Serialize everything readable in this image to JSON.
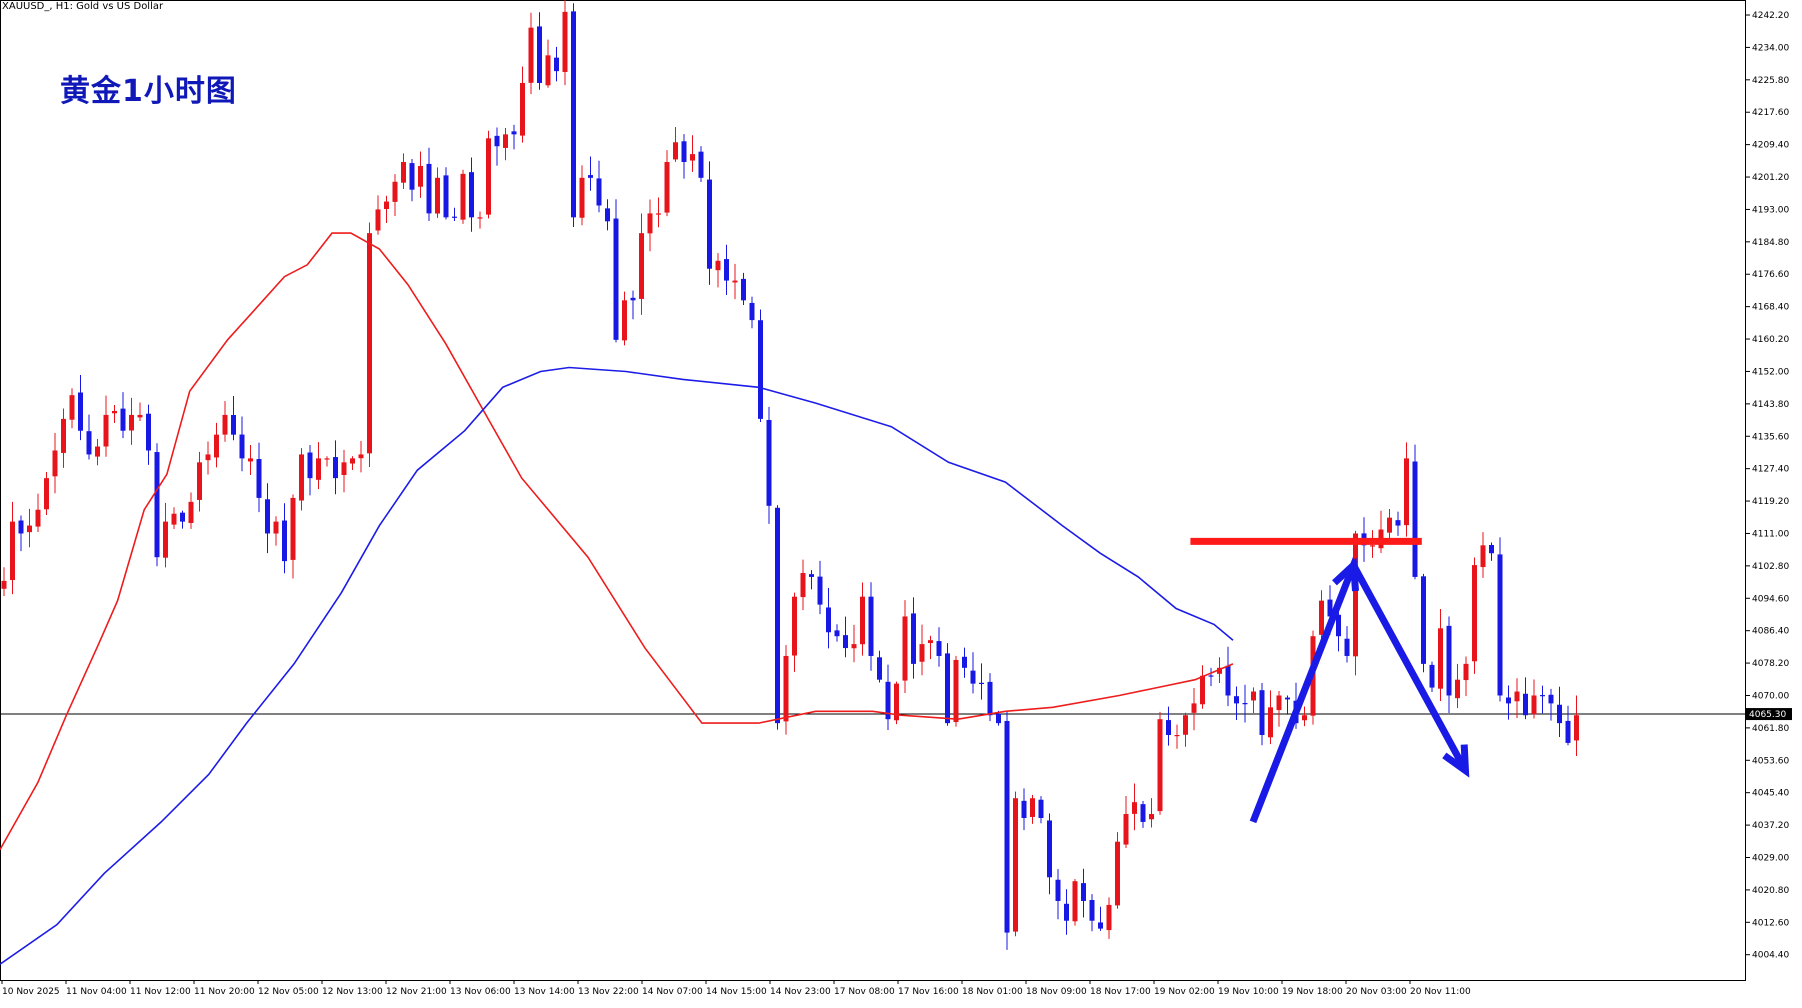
{
  "header": {
    "symbol_line": "XAUUSD_, H1:  Gold vs US Dollar"
  },
  "overlay_title": "黄金1小时图",
  "current_price_label": "4065.30",
  "colors": {
    "up": "#e8141c",
    "down": "#1717e6",
    "ma_fast": "#ee1c1c",
    "ma_slow": "#1c1ce8",
    "arrow": "#1a1ae6",
    "resistance": "#ff1a1a"
  },
  "chart_data": {
    "type": "candlestick",
    "title": "",
    "symbol": "XAUUSD_",
    "timeframe": "H1",
    "ylim": [
      3998,
      4246
    ],
    "y_ticks": [
      "4242.20",
      "4234.00",
      "4225.80",
      "4217.60",
      "4209.40",
      "4201.20",
      "4193.00",
      "4184.80",
      "4176.60",
      "4168.40",
      "4160.20",
      "4152.00",
      "4143.80",
      "4135.60",
      "4127.40",
      "4119.20",
      "4111.00",
      "4102.80",
      "4094.60",
      "4086.40",
      "4078.20",
      "4070.00",
      "4061.80",
      "4053.60",
      "4045.40",
      "4037.20",
      "4029.00",
      "4020.80",
      "4012.60",
      "4004.40"
    ],
    "x_ticks": [
      "10 Nov 2025",
      "11 Nov 04:00",
      "11 Nov 12:00",
      "11 Nov 20:00",
      "12 Nov 05:00",
      "12 Nov 13:00",
      "12 Nov 21:00",
      "13 Nov 06:00",
      "13 Nov 14:00",
      "13 Nov 22:00",
      "14 Nov 07:00",
      "14 Nov 15:00",
      "14 Nov 23:00",
      "17 Nov 08:00",
      "17 Nov 16:00",
      "18 Nov 01:00",
      "18 Nov 09:00",
      "18 Nov 17:00",
      "19 Nov 02:00",
      "19 Nov 10:00",
      "19 Nov 18:00",
      "20 Nov 03:00",
      "20 Nov 11:00"
    ],
    "current_price": 4065.3,
    "closes": [
      4099,
      4114,
      4111,
      4113,
      4117,
      4125,
      4132,
      4140,
      4146,
      4137,
      4131,
      4133,
      4141,
      4142,
      4137,
      4141,
      4141,
      4132,
      4105,
      4114,
      4116,
      4114,
      4119,
      4129,
      4131,
      4136,
      4141,
      4136,
      4130,
      4130,
      4120,
      4111,
      4114,
      4104,
      4120,
      4131,
      4125,
      4130,
      4130,
      4125,
      4129,
      4130,
      4131,
      4187,
      4193,
      4195,
      4200,
      4205,
      4198,
      4204,
      4192,
      4201,
      4191,
      4191,
      4202,
      4191,
      4191,
      4211,
      4209,
      4212,
      4212,
      4225,
      4239,
      4225,
      4232,
      4228,
      4243,
      4191,
      4201,
      4201,
      4194,
      4190,
      4160,
      4170,
      4170,
      4187,
      4192,
      4192,
      4205,
      4210,
      4205,
      4207,
      4201,
      4178,
      4180,
      4175,
      4175,
      4170,
      4165,
      4140,
      4118,
      4063,
      4080,
      4095,
      4101,
      4100,
      4093,
      4086,
      4085,
      4082,
      4083,
      4095,
      4080,
      4074,
      4064,
      4073,
      4090,
      4078,
      4083,
      4084,
      4080,
      4063,
      4079,
      4077,
      4073,
      4073,
      4065,
      4063,
      4010,
      4044,
      4039,
      4044,
      4039,
      4024,
      4018,
      4013,
      4023,
      4018,
      4013,
      4011,
      4017,
      4033,
      4040,
      4043,
      4038,
      4040,
      4064,
      4060,
      4060,
      4065,
      4068,
      4075,
      4075,
      4077,
      4070,
      4068,
      4068,
      4071,
      4060,
      4067,
      4070,
      4069,
      4063,
      4065,
      4085,
      4094,
      4090,
      4085,
      4080,
      4111,
      4108,
      4108,
      4112,
      4115,
      4113,
      4130,
      4100,
      4078,
      4072,
      4087,
      4070,
      4074,
      4078,
      4103,
      4108,
      4106,
      4070,
      4068,
      4071,
      4065,
      4070,
      4070,
      4068,
      4063,
      4058,
      4065
    ],
    "series": [
      {
        "name": "",
        "kind": "moving_average",
        "points": [
          [
            0,
            4031
          ],
          [
            20,
            4048
          ],
          [
            35,
            4065
          ],
          [
            52,
            4083
          ],
          [
            62,
            4094
          ],
          [
            76,
            4117
          ],
          [
            88,
            4126
          ],
          [
            100,
            4147
          ],
          [
            120,
            4160
          ],
          [
            135,
            4168
          ],
          [
            150,
            4176
          ],
          [
            162,
            4179
          ],
          [
            175,
            4187
          ],
          [
            185,
            4187
          ],
          [
            200,
            4183
          ],
          [
            215,
            4174
          ],
          [
            235,
            4159
          ],
          [
            255,
            4142
          ],
          [
            275,
            4125
          ],
          [
            310,
            4105
          ],
          [
            340,
            4082
          ],
          [
            370,
            4063
          ],
          [
            400,
            4063
          ],
          [
            430,
            4066
          ],
          [
            460,
            4066
          ],
          [
            475,
            4065
          ],
          [
            505,
            4064
          ],
          [
            530,
            4066
          ],
          [
            555,
            4067
          ],
          [
            590,
            4070
          ],
          [
            610,
            4072
          ],
          [
            630,
            4074
          ],
          [
            650,
            4078
          ]
        ]
      },
      {
        "name": "",
        "kind": "moving_average",
        "points": [
          [
            0,
            4002
          ],
          [
            30,
            4012
          ],
          [
            55,
            4025
          ],
          [
            85,
            4038
          ],
          [
            110,
            4050
          ],
          [
            130,
            4063
          ],
          [
            155,
            4078
          ],
          [
            180,
            4096
          ],
          [
            200,
            4113
          ],
          [
            220,
            4127
          ],
          [
            245,
            4137
          ],
          [
            265,
            4148
          ],
          [
            285,
            4152
          ],
          [
            300,
            4153
          ],
          [
            330,
            4152
          ],
          [
            360,
            4150
          ],
          [
            400,
            4148
          ],
          [
            430,
            4144
          ],
          [
            470,
            4138
          ],
          [
            500,
            4129
          ],
          [
            530,
            4124
          ],
          [
            560,
            4113
          ],
          [
            580,
            4106
          ],
          [
            600,
            4100
          ],
          [
            620,
            4092
          ],
          [
            640,
            4088
          ],
          [
            650,
            4084
          ]
        ]
      }
    ],
    "annotations": [
      {
        "type": "resistance_line",
        "price": 4109,
        "from_bar": 617,
        "to_bar": 739
      },
      {
        "type": "projected_path",
        "points": [
          [
            650,
            4038
          ],
          [
            703,
            4103
          ],
          [
            762,
            4051
          ]
        ]
      }
    ]
  }
}
